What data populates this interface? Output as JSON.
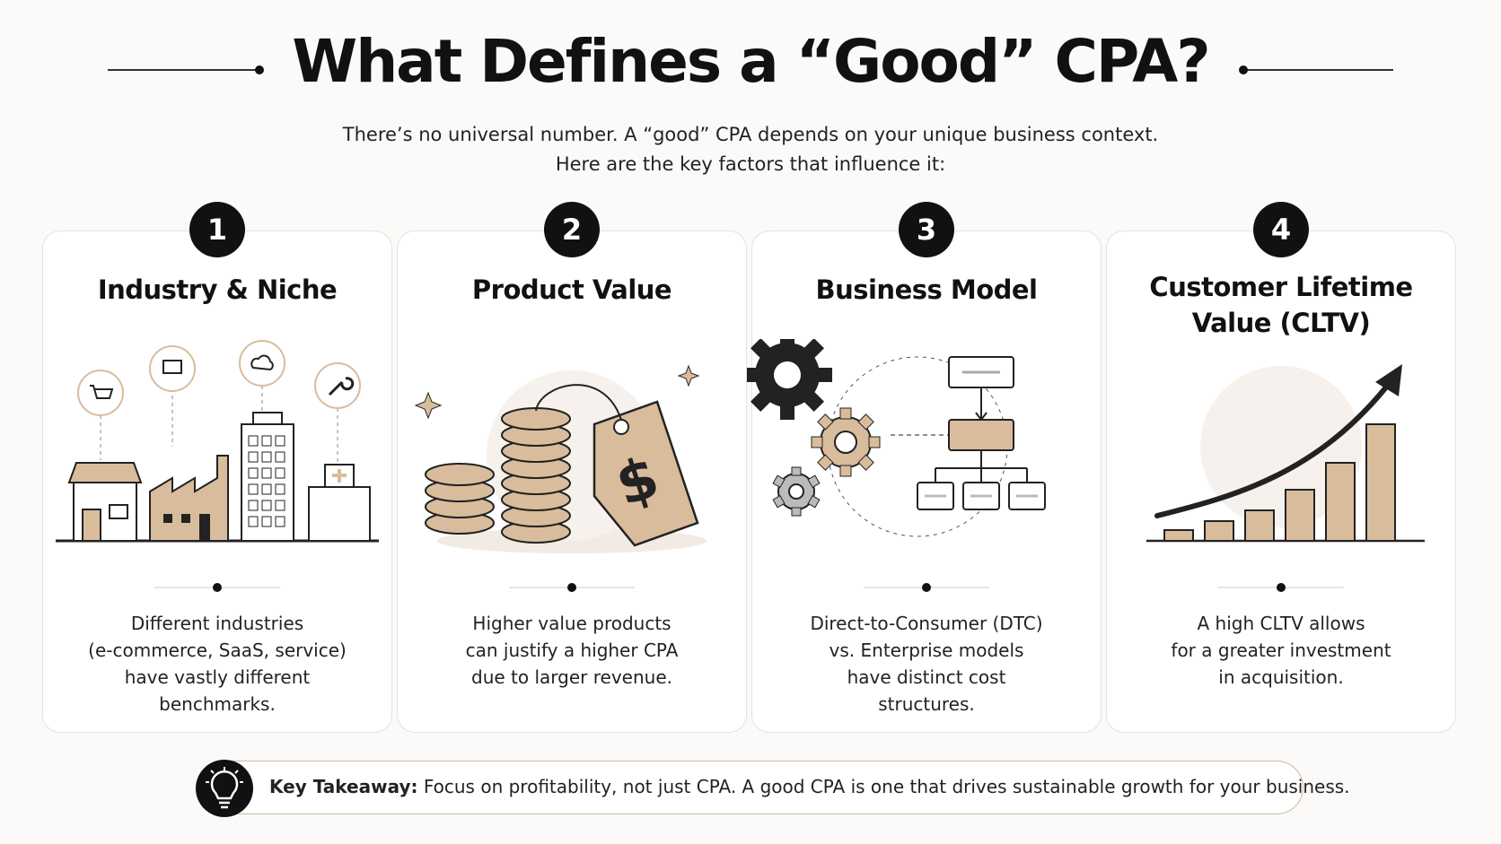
{
  "header": {
    "title": "What Defines a “Good” CPA?",
    "subtitle_lines": [
      "There’s no universal number. A “good” CPA depends on your unique business context.",
      "Here are the key factors that influence it:"
    ]
  },
  "factors": [
    {
      "number": 1,
      "title": "Industry & Niche",
      "description_lines": [
        "Different industries",
        "(e-commerce, SaaS, service)",
        "have vastly different",
        "benchmarks."
      ]
    },
    {
      "number": 2,
      "title": "Product Value",
      "description_lines": [
        "Higher value products",
        "can justify a higher CPA",
        "due to larger revenue."
      ]
    },
    {
      "number": 3,
      "title": "Business Model",
      "description_lines": [
        "Direct-to-Consumer (DTC)",
        "vs. Enterprise models",
        "have distinct cost",
        "structures."
      ]
    },
    {
      "number": 4,
      "title": "Customer Lifetime Value (CLTV)",
      "description_lines": [
        "A high CLTV allows",
        "for a greater investment",
        "in acquisition."
      ]
    }
  ],
  "takeaway": {
    "label": "Key Takeaway:",
    "text": "Focus on profitability, not just CPA. A good CPA is one that drives sustainable growth for your business."
  }
}
